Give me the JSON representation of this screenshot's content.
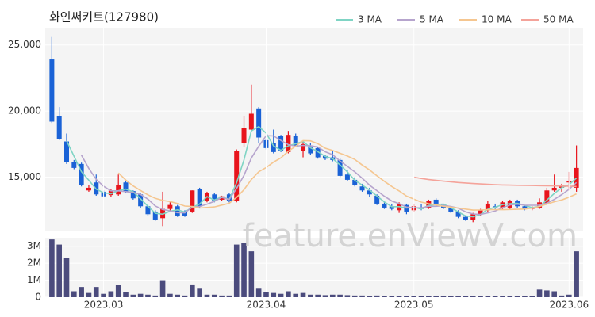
{
  "watermark": "feature.enViewV.com",
  "chart_data": [
    {
      "type": "candlestick",
      "title": "화인써키트(127980)",
      "xlim": [
        -0.9,
        71.9
      ],
      "ylim": [
        10900,
        26300
      ],
      "yticks": [
        {
          "value": 15000,
          "label": "15,000"
        },
        {
          "value": 20000,
          "label": "20,000"
        },
        {
          "value": 25000,
          "label": "25,000"
        }
      ],
      "grid": true,
      "up_color": "#e8141c",
      "down_color": "#1a62d6",
      "legend": "top-right",
      "open": [
        23900,
        19600,
        17700,
        16150,
        16000,
        14000,
        14600,
        13900,
        13650,
        13700,
        14600,
        13950,
        13700,
        12800,
        12400,
        11900,
        12600,
        12800,
        12400,
        12400,
        14100,
        13200,
        13700,
        13300,
        13700,
        13200,
        17600,
        18600,
        20200,
        17800,
        17600,
        18100,
        16900,
        18100,
        17000,
        17400,
        17200,
        16600,
        16500,
        16300,
        15200,
        14800,
        14300,
        14000,
        13600,
        13000,
        12800,
        12500,
        12900,
        12500,
        12700,
        12700,
        13300,
        12900,
        12700,
        12400,
        12000,
        11800,
        12200,
        12500,
        12800,
        12700,
        12700,
        13200,
        12800,
        12700,
        12700,
        13000,
        14000,
        14200,
        14600,
        14200
      ],
      "high": [
        25600,
        20300,
        18300,
        16300,
        16100,
        14400,
        15200,
        14000,
        14100,
        15200,
        14700,
        14000,
        13800,
        12900,
        12500,
        13900,
        13100,
        12900,
        12500,
        14000,
        14200,
        13900,
        13800,
        13600,
        13800,
        17100,
        19600,
        22000,
        20300,
        17900,
        18600,
        18200,
        18500,
        18300,
        17700,
        17600,
        17300,
        16700,
        17000,
        16400,
        15500,
        15000,
        14500,
        14200,
        13700,
        13100,
        13000,
        13100,
        13000,
        13000,
        13000,
        13300,
        13400,
        13000,
        12800,
        12500,
        12100,
        12300,
        12600,
        13200,
        13000,
        13200,
        13300,
        13300,
        12900,
        12800,
        13400,
        14200,
        15200,
        14500,
        15400,
        17400
      ],
      "low": [
        19100,
        17800,
        16000,
        15600,
        14300,
        13900,
        13600,
        13500,
        13500,
        13600,
        13800,
        13300,
        12700,
        12100,
        11700,
        11300,
        12400,
        12000,
        12000,
        12300,
        12700,
        13100,
        13100,
        13200,
        13100,
        13100,
        17300,
        18400,
        17600,
        17100,
        16800,
        16900,
        16800,
        17300,
        16500,
        16700,
        16400,
        16300,
        16200,
        15000,
        14700,
        14300,
        13900,
        13500,
        12900,
        12600,
        12500,
        12300,
        12200,
        12400,
        12500,
        12600,
        12900,
        12600,
        12300,
        11900,
        11700,
        11600,
        12100,
        12400,
        12600,
        12600,
        12600,
        12700,
        12500,
        12500,
        12600,
        12900,
        13900,
        13900,
        14000,
        13900
      ],
      "close": [
        19200,
        17900,
        16150,
        15700,
        14400,
        14200,
        13700,
        13550,
        14000,
        14400,
        13900,
        13400,
        12800,
        12200,
        11800,
        12600,
        12900,
        12100,
        12100,
        14000,
        12800,
        13800,
        13200,
        13550,
        13200,
        17000,
        18700,
        19800,
        18000,
        17200,
        16900,
        17000,
        18200,
        17400,
        17500,
        16800,
        16500,
        16400,
        16300,
        15100,
        14800,
        14400,
        14000,
        13700,
        13000,
        12700,
        12600,
        13000,
        12400,
        12800,
        12600,
        13200,
        13000,
        12700,
        12400,
        12000,
        11800,
        12200,
        12500,
        13000,
        12700,
        13100,
        13200,
        12800,
        12600,
        12700,
        13100,
        14000,
        14200,
        14400,
        14700,
        15700
      ],
      "series": [
        {
          "name": "3 MA",
          "color": "#7fd4c4",
          "values": [
            null,
            null,
            17750,
            16580,
            15420,
            14770,
            14100,
            13820,
            13750,
            13980,
            14100,
            13900,
            13370,
            12800,
            12270,
            12200,
            12430,
            12530,
            12370,
            12730,
            12970,
            13530,
            13270,
            13520,
            13320,
            14580,
            16300,
            18500,
            18830,
            18330,
            17370,
            17030,
            17370,
            17530,
            17700,
            17230,
            16930,
            16570,
            16400,
            15930,
            15400,
            14770,
            14400,
            14030,
            13570,
            13130,
            12770,
            12770,
            12670,
            12730,
            12600,
            12870,
            12930,
            12970,
            12700,
            12370,
            12070,
            12000,
            12170,
            12570,
            12730,
            12930,
            13000,
            13030,
            12870,
            12700,
            12800,
            13270,
            13770,
            14200,
            14430,
            14930
          ]
        },
        {
          "name": "5 MA",
          "color": "#b6a4cd",
          "values": [
            null,
            null,
            null,
            null,
            16670,
            15670,
            14830,
            14310,
            13970,
            13970,
            13910,
            13850,
            13700,
            13340,
            12820,
            12560,
            12460,
            12320,
            12300,
            12740,
            12780,
            12960,
            13180,
            13470,
            13310,
            14150,
            15130,
            16450,
            17340,
            18140,
            18120,
            17780,
            17460,
            17340,
            17400,
            17380,
            17280,
            16920,
            16700,
            16220,
            15820,
            15400,
            14920,
            14400,
            13980,
            13560,
            13200,
            13000,
            12740,
            12700,
            12680,
            12800,
            12800,
            12860,
            12780,
            12660,
            12380,
            12220,
            12180,
            12300,
            12440,
            12700,
            12900,
            12960,
            12880,
            12880,
            12880,
            13040,
            13320,
            13680,
            14080,
            14600
          ]
        },
        {
          "name": "10 MA",
          "color": "#f5c690",
          "values": [
            null,
            null,
            null,
            null,
            null,
            null,
            null,
            null,
            null,
            15320,
            14790,
            14340,
            14000,
            13660,
            13400,
            13240,
            13160,
            13010,
            12820,
            12780,
            12670,
            12710,
            12750,
            12890,
            13030,
            13470,
            14050,
            14820,
            15410,
            15730,
            16140,
            16460,
            16960,
            17340,
            17770,
            17750,
            17530,
            17190,
            17020,
            16810,
            16600,
            16340,
            15920,
            15550,
            15100,
            14690,
            14300,
            13960,
            13570,
            13340,
            13120,
            13000,
            12900,
            12800,
            12740,
            12670,
            12590,
            12510,
            12520,
            12540,
            12550,
            12540,
            12560,
            12570,
            12590,
            12660,
            12790,
            12970,
            13140,
            13280,
            13480,
            13740
          ]
        },
        {
          "name": "50 MA",
          "color": "#f4a39a",
          "values": [
            null,
            null,
            null,
            null,
            null,
            null,
            null,
            null,
            null,
            null,
            null,
            null,
            null,
            null,
            null,
            null,
            null,
            null,
            null,
            null,
            null,
            null,
            null,
            null,
            null,
            null,
            null,
            null,
            null,
            null,
            null,
            null,
            null,
            null,
            null,
            null,
            null,
            null,
            null,
            null,
            null,
            null,
            null,
            null,
            null,
            null,
            null,
            null,
            null,
            15000,
            14900,
            14820,
            14760,
            14700,
            14650,
            14600,
            14560,
            14520,
            14490,
            14460,
            14430,
            14410,
            14400,
            14390,
            14380,
            14370,
            14360,
            14350,
            14340,
            14330,
            14320,
            14300
          ]
        }
      ]
    },
    {
      "type": "bar",
      "color": "#4b4b7d",
      "xlim": [
        -0.9,
        71.9
      ],
      "ylim": [
        0,
        3500000
      ],
      "yticks": [
        0,
        {
          "value": 1000000,
          "label": "1M"
        },
        {
          "value": 2000000,
          "label": "2M"
        },
        {
          "value": 3000000,
          "label": "3M"
        }
      ],
      "xticks": [
        {
          "value": 7,
          "label": "2023.03"
        },
        {
          "value": 29,
          "label": "2023.04"
        },
        {
          "value": 49,
          "label": "2023.05"
        },
        {
          "value": 70,
          "label": "2023.06"
        }
      ],
      "grid": true,
      "values": [
        3400000,
        3100000,
        2300000,
        350000,
        600000,
        250000,
        600000,
        200000,
        350000,
        700000,
        300000,
        150000,
        200000,
        150000,
        100000,
        1000000,
        200000,
        150000,
        100000,
        750000,
        500000,
        150000,
        150000,
        100000,
        100000,
        3100000,
        3200000,
        2700000,
        500000,
        300000,
        250000,
        200000,
        350000,
        200000,
        250000,
        150000,
        150000,
        120000,
        150000,
        150000,
        120000,
        100000,
        100000,
        80000,
        100000,
        80000,
        70000,
        80000,
        70000,
        60000,
        80000,
        80000,
        70000,
        60000,
        60000,
        70000,
        60000,
        80000,
        70000,
        90000,
        60000,
        80000,
        70000,
        60000,
        50000,
        50000,
        450000,
        400000,
        350000,
        100000,
        150000,
        2700000
      ]
    }
  ]
}
